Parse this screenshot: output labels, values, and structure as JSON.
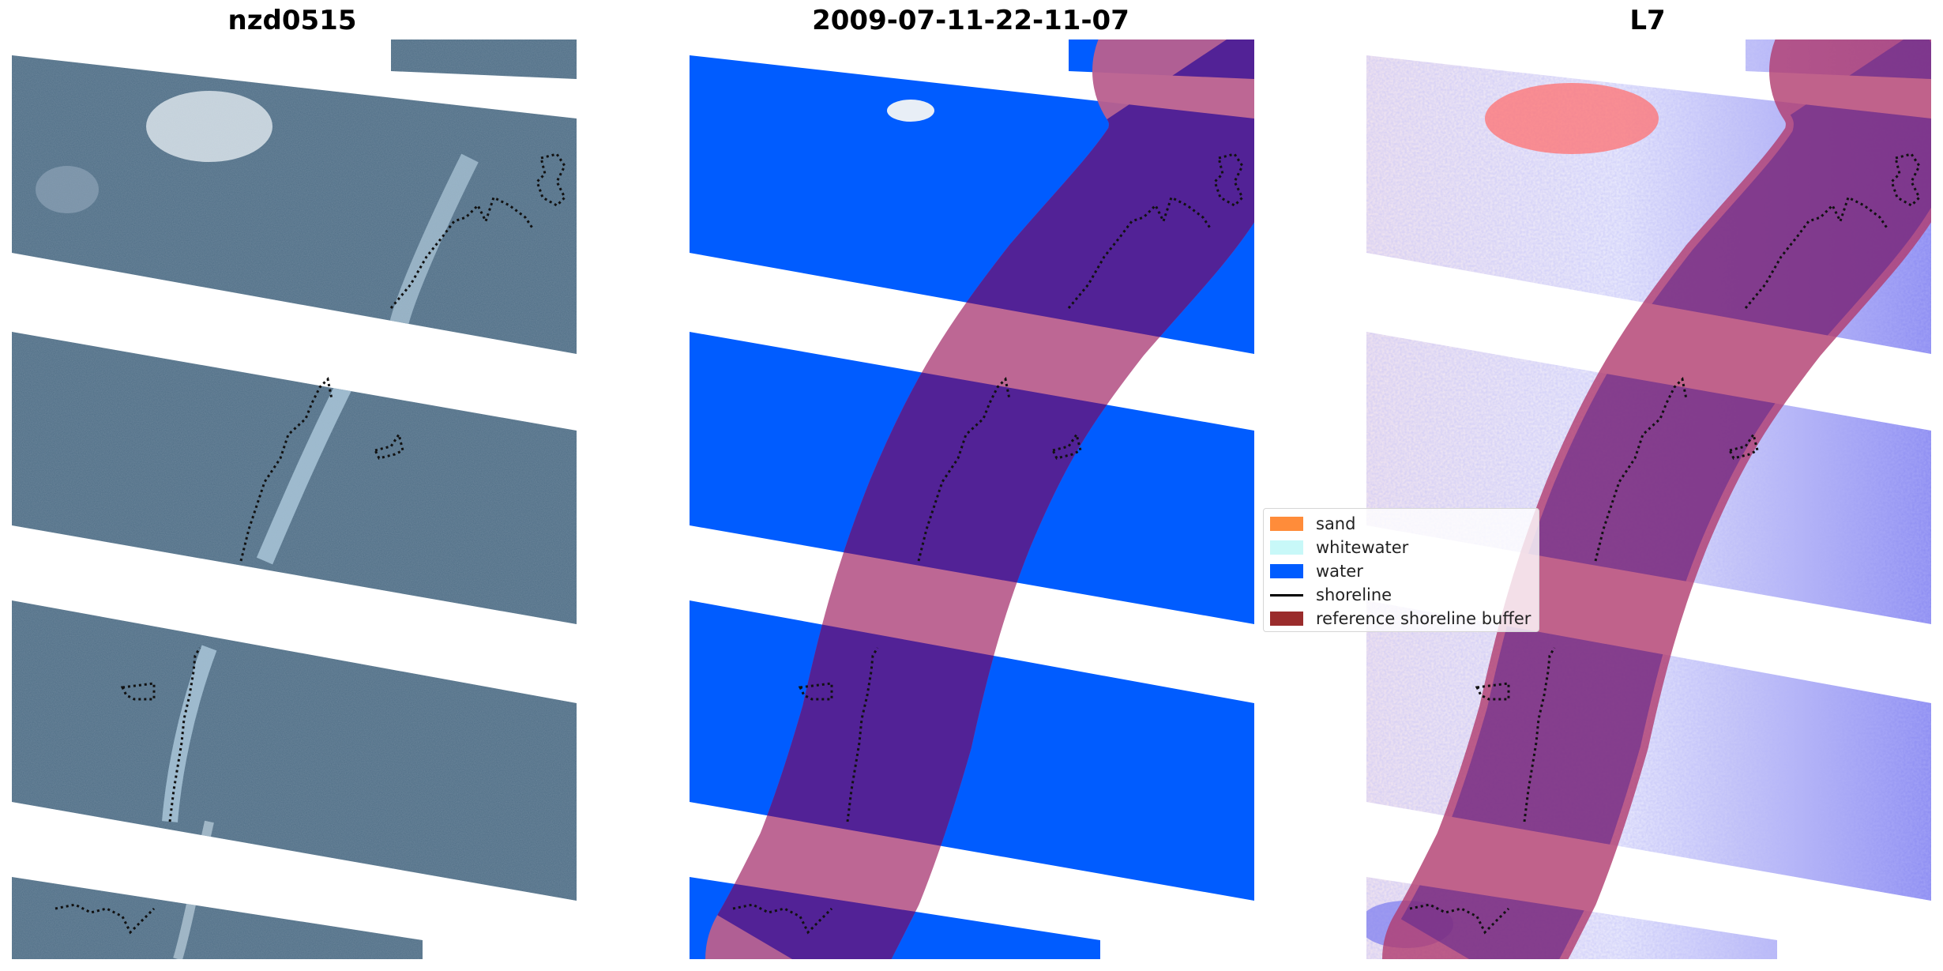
{
  "panels": [
    {
      "title": "nzd0515"
    },
    {
      "title": "2009-07-11-22-11-07"
    },
    {
      "title": "L7"
    }
  ],
  "legend": {
    "items": [
      {
        "label": "sand",
        "color": "#ff8c3a"
      },
      {
        "label": "whitewater",
        "color": "#c8f8f8"
      },
      {
        "label": "water",
        "color": "#005cff"
      },
      {
        "label": "shoreline",
        "color": "#000000"
      },
      {
        "label": "reference shoreline buffer",
        "color": "#9a2c2c"
      }
    ]
  },
  "colors": {
    "rgb_image_water": "#4f6e86",
    "classified_water": "#005cff",
    "buffer_pink": "#b95f8e",
    "buffer_purple": "#522296",
    "index_white": "#f2f2ff",
    "index_red": "#ff7070",
    "index_blue": "#7b7bf0"
  }
}
